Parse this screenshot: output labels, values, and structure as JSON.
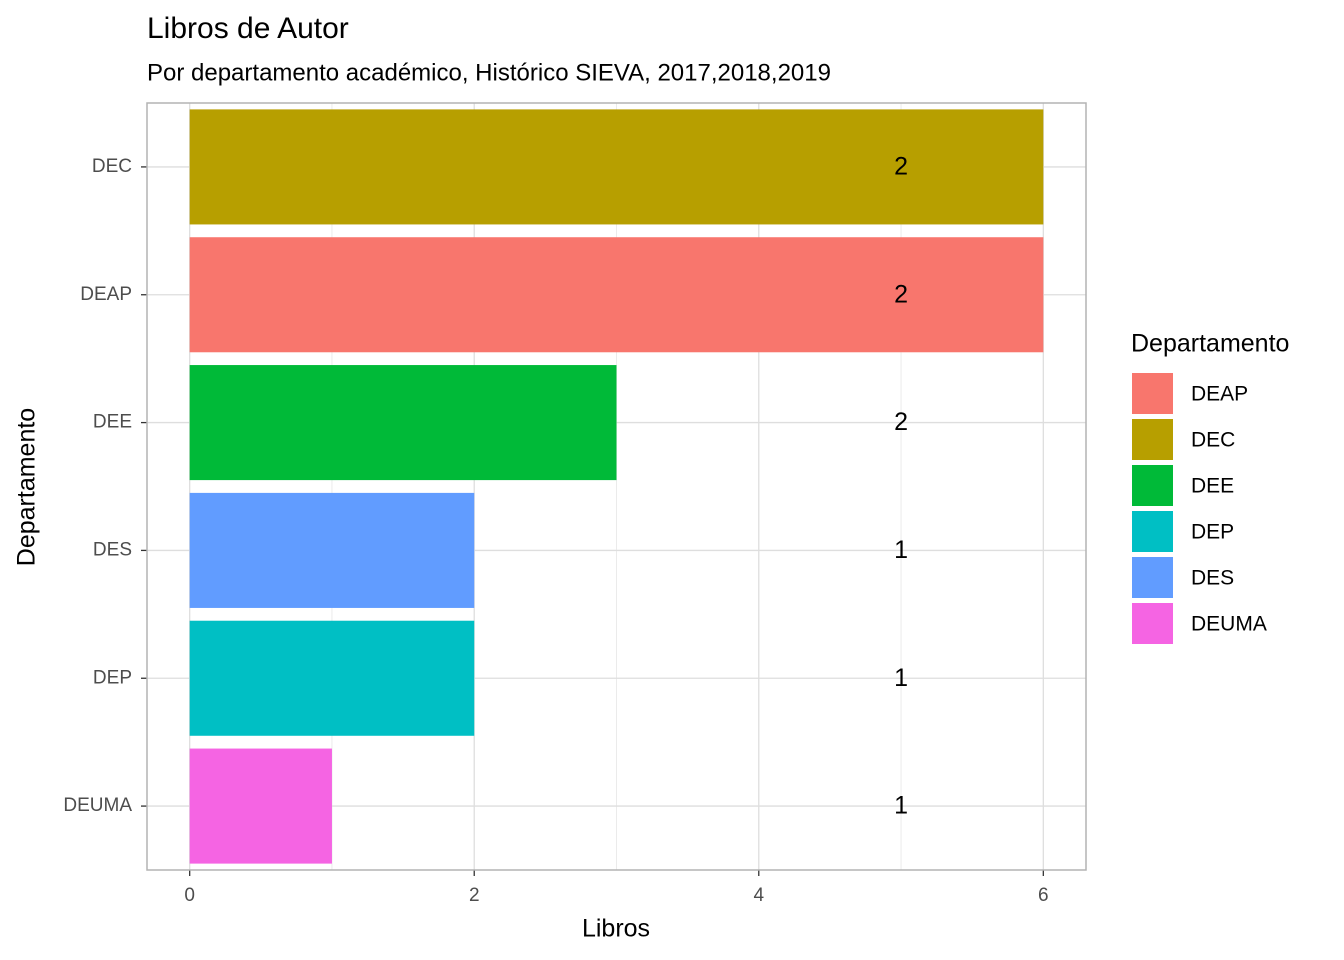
{
  "chart_data": {
    "type": "bar",
    "orientation": "horizontal",
    "title": "Libros de Autor",
    "subtitle": "Por departamento académico, Histórico SIEVA, 2017,2018,2019",
    "xlabel": "Libros",
    "ylabel": "Departamento",
    "categories": [
      "DEC",
      "DEAP",
      "DEE",
      "DES",
      "DEP",
      "DEUMA"
    ],
    "values": [
      6,
      6,
      3,
      2,
      2,
      1
    ],
    "labels": [
      2,
      2,
      2,
      1,
      1,
      1
    ],
    "label_x": 5,
    "xlim": [
      -0.3,
      6.3
    ],
    "xticks": [
      0,
      2,
      4,
      6
    ],
    "xminorticks": [
      1,
      3,
      5
    ],
    "grid": true,
    "legend": {
      "title": "Departamento",
      "position": "right",
      "items": [
        {
          "name": "DEAP",
          "color": "#f8766d"
        },
        {
          "name": "DEC",
          "color": "#b79f00"
        },
        {
          "name": "DEE",
          "color": "#00ba38"
        },
        {
          "name": "DEP",
          "color": "#00bfc4"
        },
        {
          "name": "DES",
          "color": "#619cff"
        },
        {
          "name": "DEUMA",
          "color": "#f564e3"
        }
      ]
    }
  }
}
